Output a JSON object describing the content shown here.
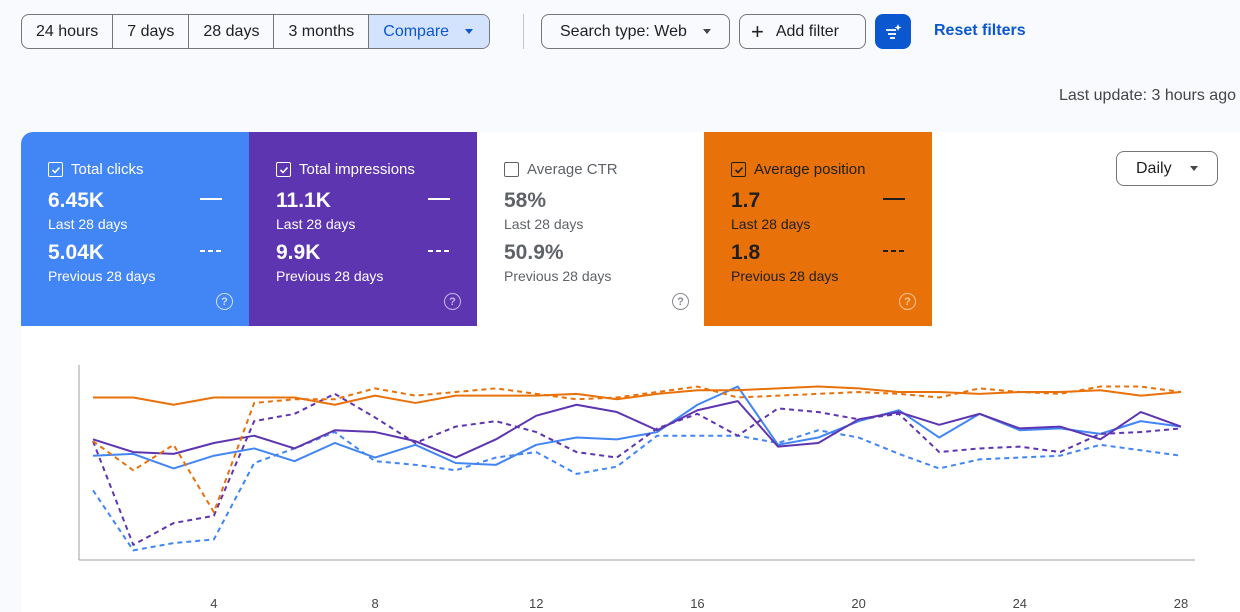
{
  "filters": {
    "date_ranges": [
      "24 hours",
      "7 days",
      "28 days",
      "3 months"
    ],
    "compare_label": "Compare",
    "search_type_label": "Search type: Web",
    "add_filter_label": "Add filter",
    "reset_label": "Reset filters"
  },
  "last_update": "Last update: 3 hours ago",
  "metrics": {
    "clicks": {
      "title": "Total clicks",
      "value": "6.45K",
      "period": "Last 28 days",
      "prev_value": "5.04K",
      "prev_period": "Previous 28 days",
      "checked": true,
      "color": "#4285f4"
    },
    "impressions": {
      "title": "Total impressions",
      "value": "11.1K",
      "period": "Last 28 days",
      "prev_value": "9.9K",
      "prev_period": "Previous 28 days",
      "checked": true,
      "color": "#5e35b1"
    },
    "ctr": {
      "title": "Average CTR",
      "value": "58%",
      "period": "Last 28 days",
      "prev_value": "50.9%",
      "prev_period": "Previous 28 days",
      "checked": false,
      "color": "#ffffff"
    },
    "position": {
      "title": "Average position",
      "value": "1.7",
      "period": "Last 28 days",
      "prev_value": "1.8",
      "prev_period": "Previous 28 days",
      "checked": true,
      "color": "#e8710a"
    }
  },
  "granularity_label": "Daily",
  "colors": {
    "accent": "#0b57d0",
    "clicks": "#4285f4",
    "impressions": "#5e35b1",
    "position": "#e8710a"
  },
  "chart_data": {
    "type": "line",
    "x": [
      1,
      2,
      3,
      4,
      5,
      6,
      7,
      8,
      9,
      10,
      11,
      12,
      13,
      14,
      15,
      16,
      17,
      18,
      19,
      20,
      21,
      22,
      23,
      24,
      25,
      26,
      27,
      28
    ],
    "x_ticks": [
      4,
      8,
      12,
      16,
      20,
      24,
      28
    ],
    "ylim": [
      0,
      100
    ],
    "grid": false,
    "series": [
      {
        "key": "clicks_current",
        "color": "#4285f4",
        "dashed": false,
        "values": [
          54,
          55,
          47,
          54,
          58,
          51,
          61,
          53,
          60,
          50,
          49,
          60,
          64,
          63,
          67,
          82,
          92,
          60,
          64,
          73,
          79,
          64,
          77,
          68,
          69,
          66,
          73,
          70
        ]
      },
      {
        "key": "clicks_previous",
        "color": "#4285f4",
        "dashed": true,
        "values": [
          35,
          2,
          6,
          8,
          50,
          58,
          67,
          51,
          49,
          46,
          53,
          56,
          44,
          48,
          65,
          65,
          65,
          61,
          68,
          64,
          55,
          47,
          52,
          53,
          54,
          60,
          57,
          54
        ]
      },
      {
        "key": "impressions_current",
        "color": "#5e35b1",
        "dashed": false,
        "values": [
          63,
          56,
          55,
          61,
          65,
          58,
          68,
          67,
          62,
          53,
          63,
          76,
          82,
          78,
          68,
          79,
          84,
          59,
          61,
          74,
          78,
          71,
          77,
          69,
          70,
          63,
          78,
          70
        ]
      },
      {
        "key": "impressions_previous",
        "color": "#5e35b1",
        "dashed": true,
        "values": [
          62,
          5,
          17,
          21,
          73,
          77,
          88,
          75,
          61,
          70,
          73,
          67,
          56,
          53,
          69,
          77,
          65,
          80,
          78,
          74,
          77,
          56,
          58,
          59,
          56,
          66,
          67,
          69
        ]
      },
      {
        "key": "position_current",
        "color": "#e8710a",
        "dashed": false,
        "values": [
          86,
          86,
          82,
          86,
          86,
          86,
          82,
          87,
          83,
          87,
          87,
          87,
          88,
          85,
          88,
          90,
          90,
          91,
          92,
          91,
          89,
          89,
          88,
          89,
          89,
          90,
          87,
          89
        ]
      },
      {
        "key": "position_previous",
        "color": "#e8710a",
        "dashed": true,
        "values": [
          62,
          46,
          60,
          23,
          83,
          85,
          85,
          91,
          87,
          89,
          91,
          88,
          85,
          86,
          89,
          92,
          86,
          87,
          88,
          89,
          88,
          86,
          91,
          89,
          88,
          92,
          92,
          89
        ]
      }
    ]
  }
}
